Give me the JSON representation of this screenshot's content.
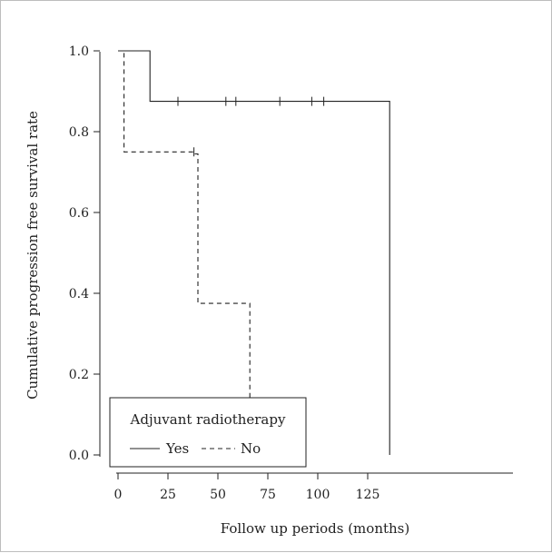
{
  "chart_data": {
    "type": "line",
    "subtype": "kaplan-meier",
    "title": "",
    "xlabel": "Follow up periods (months)",
    "ylabel": "Cumulative progression free survival rate",
    "xlim": [
      -5,
      145
    ],
    "ylim": [
      -0.03,
      1.06
    ],
    "xticks": [
      0,
      25,
      50,
      75,
      100,
      125
    ],
    "yticks": [
      "0.0",
      "0.2",
      "0.4",
      "0.6",
      "0.8",
      "1.0"
    ],
    "legend": {
      "title": "Adjuvant radiotherapy",
      "placement": "bottom-left"
    },
    "series": [
      {
        "name": "Yes",
        "style": "solid",
        "steps": [
          [
            0,
            1.0
          ],
          [
            16,
            1.0
          ],
          [
            16,
            0.875
          ],
          [
            136,
            0.875
          ],
          [
            136,
            0.0
          ]
        ],
        "censored": [
          [
            30,
            0.875
          ],
          [
            54,
            0.875
          ],
          [
            59,
            0.875
          ],
          [
            81,
            0.875
          ],
          [
            97,
            0.875
          ],
          [
            103,
            0.875
          ]
        ]
      },
      {
        "name": "No",
        "style": "dashed",
        "steps": [
          [
            0,
            1.0
          ],
          [
            3,
            1.0
          ],
          [
            3,
            0.75
          ],
          [
            38,
            0.75
          ],
          [
            38,
            0.745
          ],
          [
            40,
            0.745
          ],
          [
            40,
            0.375
          ],
          [
            66,
            0.375
          ],
          [
            66,
            0.0
          ]
        ],
        "censored": [
          [
            38,
            0.75
          ]
        ]
      }
    ]
  }
}
